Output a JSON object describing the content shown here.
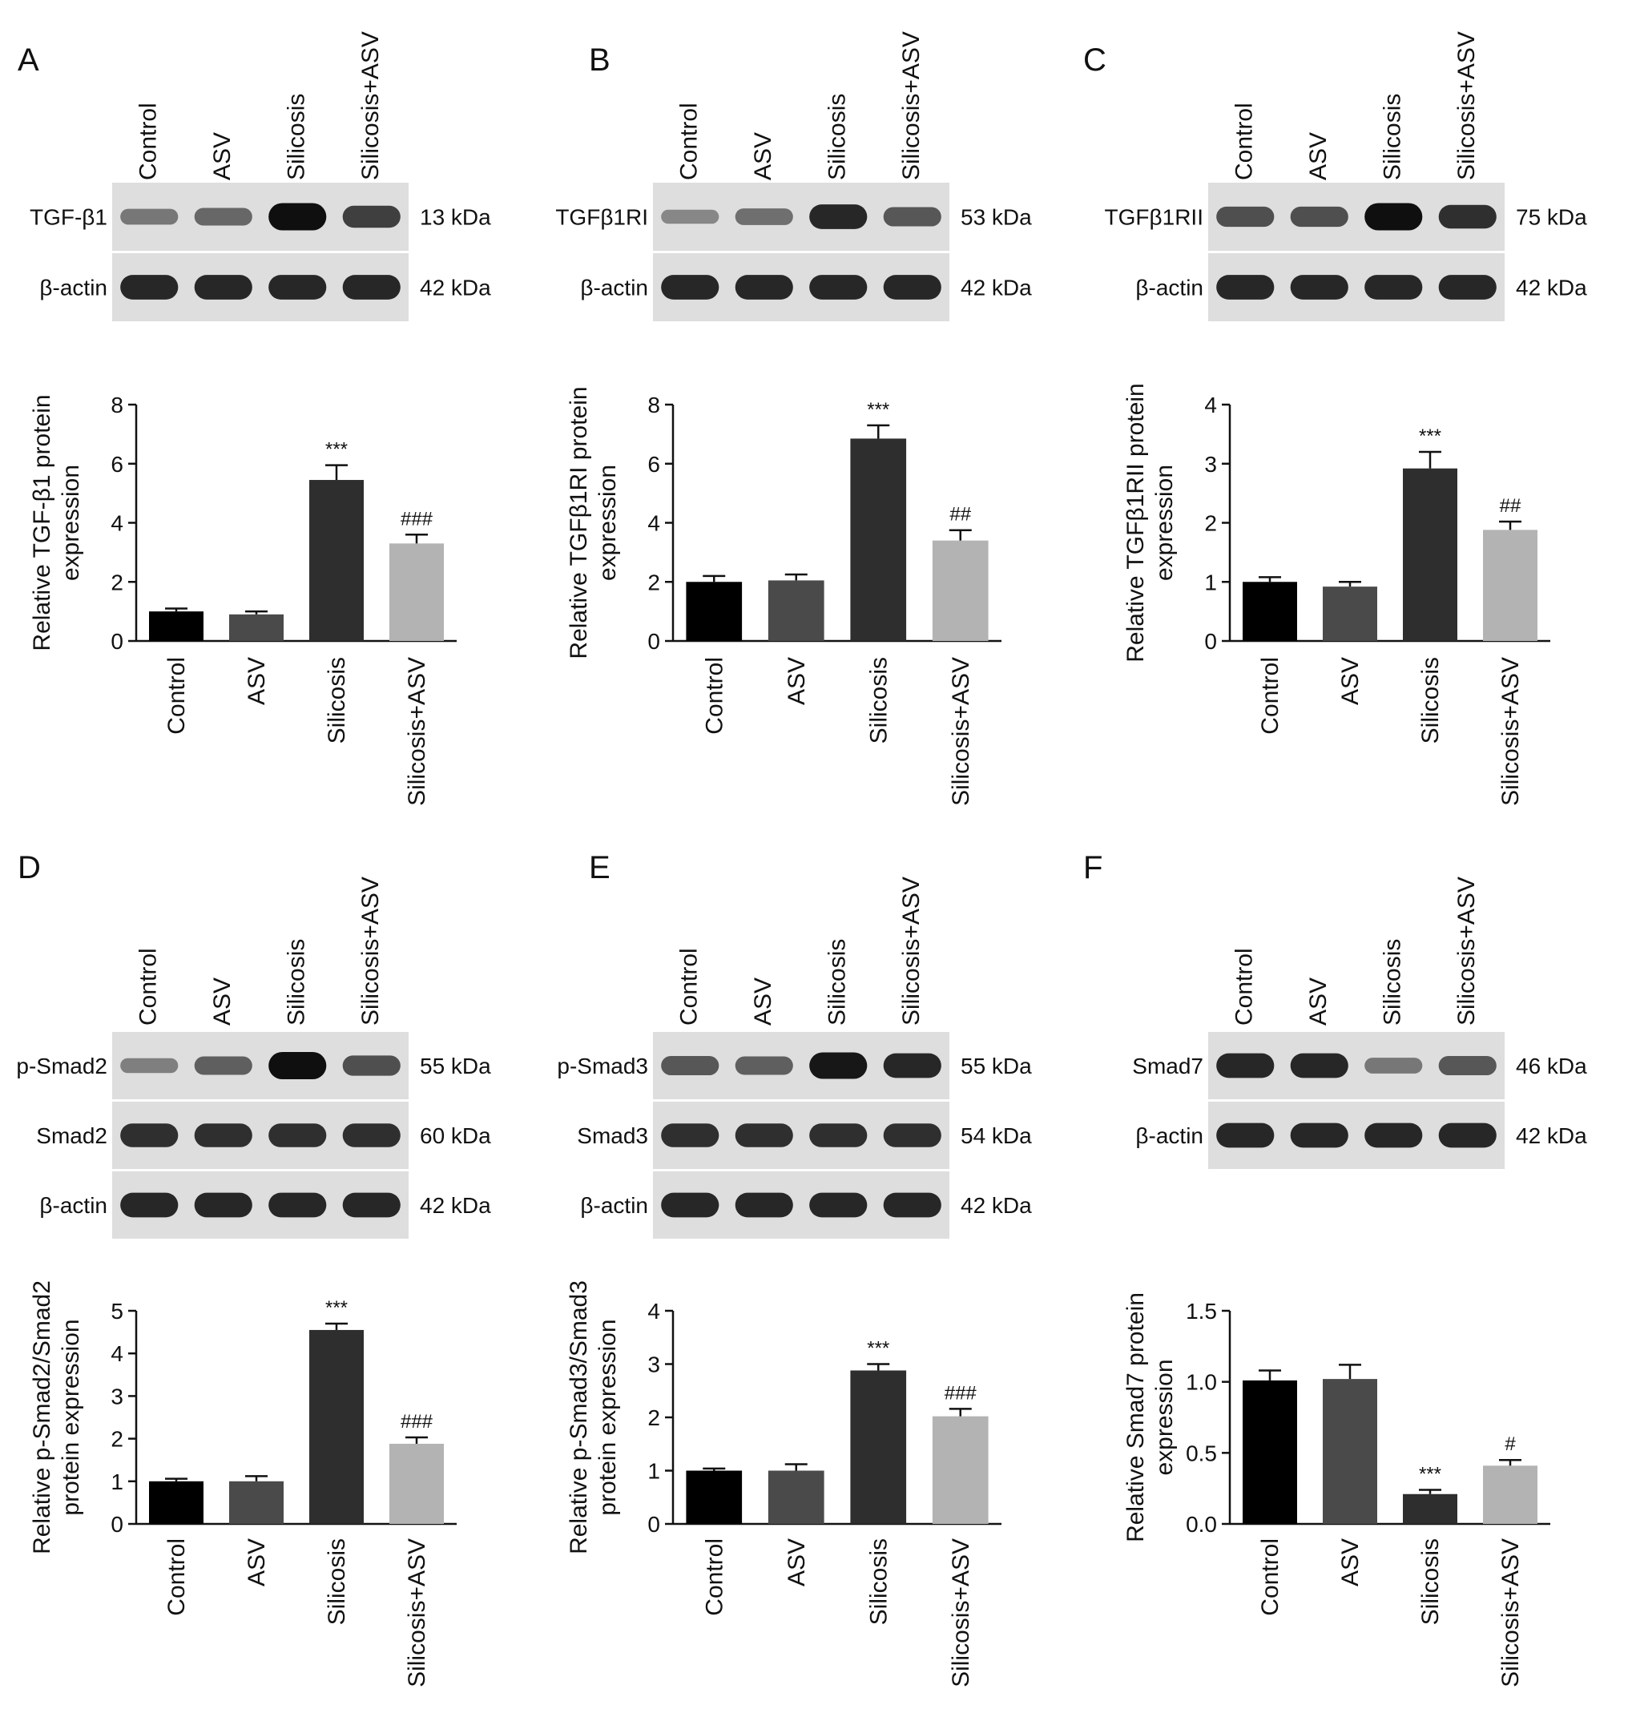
{
  "figure": {
    "lane_labels": [
      "Control",
      "ASV",
      "Silicosis",
      "Silicosis+ASV"
    ],
    "bar_colors": [
      "#000000",
      "#4a4a4a",
      "#2e2e2e",
      "#b3b3b3"
    ],
    "blot_background": "#dedede",
    "panels": [
      {
        "letter": "A",
        "blots": [
          {
            "label": "TGF-β1",
            "size": "13 kDa",
            "intensities": [
              0.35,
              0.45,
              1.0,
              0.7
            ]
          },
          {
            "label": "β-actin",
            "size": "42 kDa",
            "intensities": [
              0.85,
              0.85,
              0.85,
              0.85
            ]
          }
        ],
        "chart_data": {
          "type": "bar",
          "categories": [
            "Control",
            "ASV",
            "Silicosis",
            "Silicosis+ASV"
          ],
          "values": [
            1.0,
            0.9,
            5.45,
            3.3
          ],
          "errors": [
            0.1,
            0.1,
            0.5,
            0.3
          ],
          "annotations": [
            "",
            "",
            "***",
            "###"
          ],
          "ylabel": [
            "Relative TGF-β1 protein",
            "expression"
          ],
          "ylim": [
            0,
            8
          ],
          "yticks": [
            0,
            2,
            4,
            6,
            8
          ],
          "ytick_labels": [
            "0",
            "2",
            "4",
            "6",
            "8"
          ]
        }
      },
      {
        "letter": "B",
        "blots": [
          {
            "label": "TGFβ1RI",
            "size": "53 kDa",
            "intensities": [
              0.25,
              0.4,
              0.85,
              0.55
            ]
          },
          {
            "label": "β-actin",
            "size": "42 kDa",
            "intensities": [
              0.85,
              0.85,
              0.85,
              0.85
            ]
          }
        ],
        "chart_data": {
          "type": "bar",
          "categories": [
            "Control",
            "ASV",
            "Silicosis",
            "Silicosis+ASV"
          ],
          "values": [
            2.0,
            2.05,
            6.85,
            3.4
          ],
          "errors": [
            0.2,
            0.2,
            0.45,
            0.35
          ],
          "annotations": [
            "",
            "",
            "***",
            "##"
          ],
          "ylabel": [
            "Relative TGFβ1RI protein",
            "expression"
          ],
          "ylim": [
            0,
            8
          ],
          "yticks": [
            0,
            2,
            4,
            6,
            8
          ],
          "ytick_labels": [
            "0",
            "2",
            "4",
            "6",
            "8"
          ]
        }
      },
      {
        "letter": "C",
        "blots": [
          {
            "label": "TGFβ1RII",
            "size": "75 kDa",
            "intensities": [
              0.6,
              0.6,
              1.0,
              0.8
            ]
          },
          {
            "label": "β-actin",
            "size": "42 kDa",
            "intensities": [
              0.85,
              0.85,
              0.85,
              0.85
            ]
          }
        ],
        "chart_data": {
          "type": "bar",
          "categories": [
            "Control",
            "ASV",
            "Silicosis",
            "Silicosis+ASV"
          ],
          "values": [
            1.0,
            0.92,
            2.92,
            1.88
          ],
          "errors": [
            0.08,
            0.08,
            0.28,
            0.14
          ],
          "annotations": [
            "",
            "",
            "***",
            "##"
          ],
          "ylabel": [
            "Relative TGFβ1RII protein",
            "expression"
          ],
          "ylim": [
            0,
            4
          ],
          "yticks": [
            0,
            1,
            2,
            3,
            4
          ],
          "ytick_labels": [
            "0",
            "1",
            "2",
            "3",
            "4"
          ]
        }
      },
      {
        "letter": "D",
        "blots": [
          {
            "label": "p-Smad2",
            "size": "55 kDa",
            "intensities": [
              0.3,
              0.5,
              1.0,
              0.6
            ]
          },
          {
            "label": "Smad2",
            "size": "60 kDa",
            "intensities": [
              0.8,
              0.8,
              0.8,
              0.8
            ]
          },
          {
            "label": "β-actin",
            "size": "42 kDa",
            "intensities": [
              0.85,
              0.85,
              0.85,
              0.85
            ]
          }
        ],
        "chart_data": {
          "type": "bar",
          "categories": [
            "Control",
            "ASV",
            "Silicosis",
            "Silicosis+ASV"
          ],
          "values": [
            1.0,
            1.0,
            4.55,
            1.88
          ],
          "errors": [
            0.06,
            0.12,
            0.15,
            0.15
          ],
          "annotations": [
            "",
            "",
            "***",
            "###"
          ],
          "ylabel": [
            "Relative p-Smad2/Smad2",
            "protein expression"
          ],
          "ylim": [
            0,
            5
          ],
          "yticks": [
            0,
            1,
            2,
            3,
            4,
            5
          ],
          "ytick_labels": [
            "0",
            "1",
            "2",
            "3",
            "4",
            "5"
          ]
        }
      },
      {
        "letter": "E",
        "blots": [
          {
            "label": "p-Smad3",
            "size": "55 kDa",
            "intensities": [
              0.55,
              0.5,
              0.95,
              0.85
            ]
          },
          {
            "label": "Smad3",
            "size": "54 kDa",
            "intensities": [
              0.8,
              0.8,
              0.8,
              0.8
            ]
          },
          {
            "label": "β-actin",
            "size": "42 kDa",
            "intensities": [
              0.85,
              0.85,
              0.85,
              0.85
            ]
          }
        ],
        "chart_data": {
          "type": "bar",
          "categories": [
            "Control",
            "ASV",
            "Silicosis",
            "Silicosis+ASV"
          ],
          "values": [
            1.0,
            1.0,
            2.88,
            2.02
          ],
          "errors": [
            0.04,
            0.12,
            0.12,
            0.14
          ],
          "annotations": [
            "",
            "",
            "***",
            "###"
          ],
          "ylabel": [
            "Relative p-Smad3/Smad3",
            "protein expression"
          ],
          "ylim": [
            0,
            4
          ],
          "yticks": [
            0,
            1,
            2,
            3,
            4
          ],
          "ytick_labels": [
            "0",
            "1",
            "2",
            "3",
            "4"
          ]
        }
      },
      {
        "letter": "F",
        "blots": [
          {
            "label": "Smad7",
            "size": "46 kDa",
            "intensities": [
              0.85,
              0.85,
              0.35,
              0.55
            ]
          },
          {
            "label": "β-actin",
            "size": "42 kDa",
            "intensities": [
              0.85,
              0.85,
              0.85,
              0.85
            ]
          }
        ],
        "chart_data": {
          "type": "bar",
          "categories": [
            "Control",
            "ASV",
            "Silicosis",
            "Silicosis+ASV"
          ],
          "values": [
            1.01,
            1.02,
            0.21,
            0.41
          ],
          "errors": [
            0.07,
            0.1,
            0.03,
            0.04
          ],
          "annotations": [
            "",
            "",
            "***",
            "#"
          ],
          "ylabel": [
            "Relative Smad7 protein",
            "expression"
          ],
          "ylim": [
            0,
            1.5
          ],
          "yticks": [
            0,
            0.5,
            1.0,
            1.5
          ],
          "ytick_labels": [
            "0.0",
            "0.5",
            "1.0",
            "1.5"
          ]
        }
      }
    ]
  }
}
